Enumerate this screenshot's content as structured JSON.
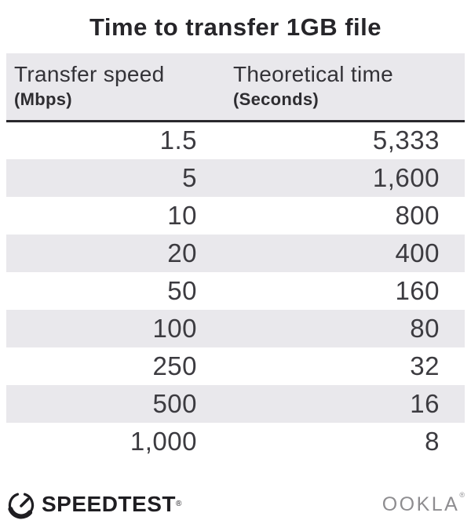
{
  "title": "Time to transfer 1GB file",
  "table": {
    "columns": [
      {
        "label": "Transfer speed",
        "unit": "(Mbps)"
      },
      {
        "label": "Theoretical time",
        "unit": "(Seconds)"
      }
    ],
    "rows": [
      {
        "speed": "1.5",
        "time": "5,333"
      },
      {
        "speed": "5",
        "time": "1,600"
      },
      {
        "speed": "10",
        "time": "800"
      },
      {
        "speed": "20",
        "time": "400"
      },
      {
        "speed": "50",
        "time": "160"
      },
      {
        "speed": "100",
        "time": "80"
      },
      {
        "speed": "250",
        "time": "32"
      },
      {
        "speed": "500",
        "time": "16"
      },
      {
        "speed": "1,000",
        "time": "8"
      }
    ]
  },
  "footer": {
    "speedtest_label": "SPEEDTEST",
    "speedtest_mark": "®",
    "ookla_label": "OOKLA",
    "ookla_mark": "®"
  },
  "colors": {
    "stripe": "#e9e8ec",
    "text_dark": "#262529",
    "divider": "#29282c",
    "ookla_grey": "#8e8d90"
  },
  "chart_data": {
    "type": "table",
    "title": "Time to transfer 1GB file",
    "columns": [
      "Transfer speed (Mbps)",
      "Theoretical time (Seconds)"
    ],
    "rows": [
      [
        1.5,
        5333
      ],
      [
        5,
        1600
      ],
      [
        10,
        800
      ],
      [
        20,
        400
      ],
      [
        50,
        160
      ],
      [
        100,
        80
      ],
      [
        250,
        32
      ],
      [
        500,
        16
      ],
      [
        1000,
        8
      ]
    ],
    "layout": {
      "zebra_striping": true,
      "grid": false,
      "legend": "none"
    }
  }
}
